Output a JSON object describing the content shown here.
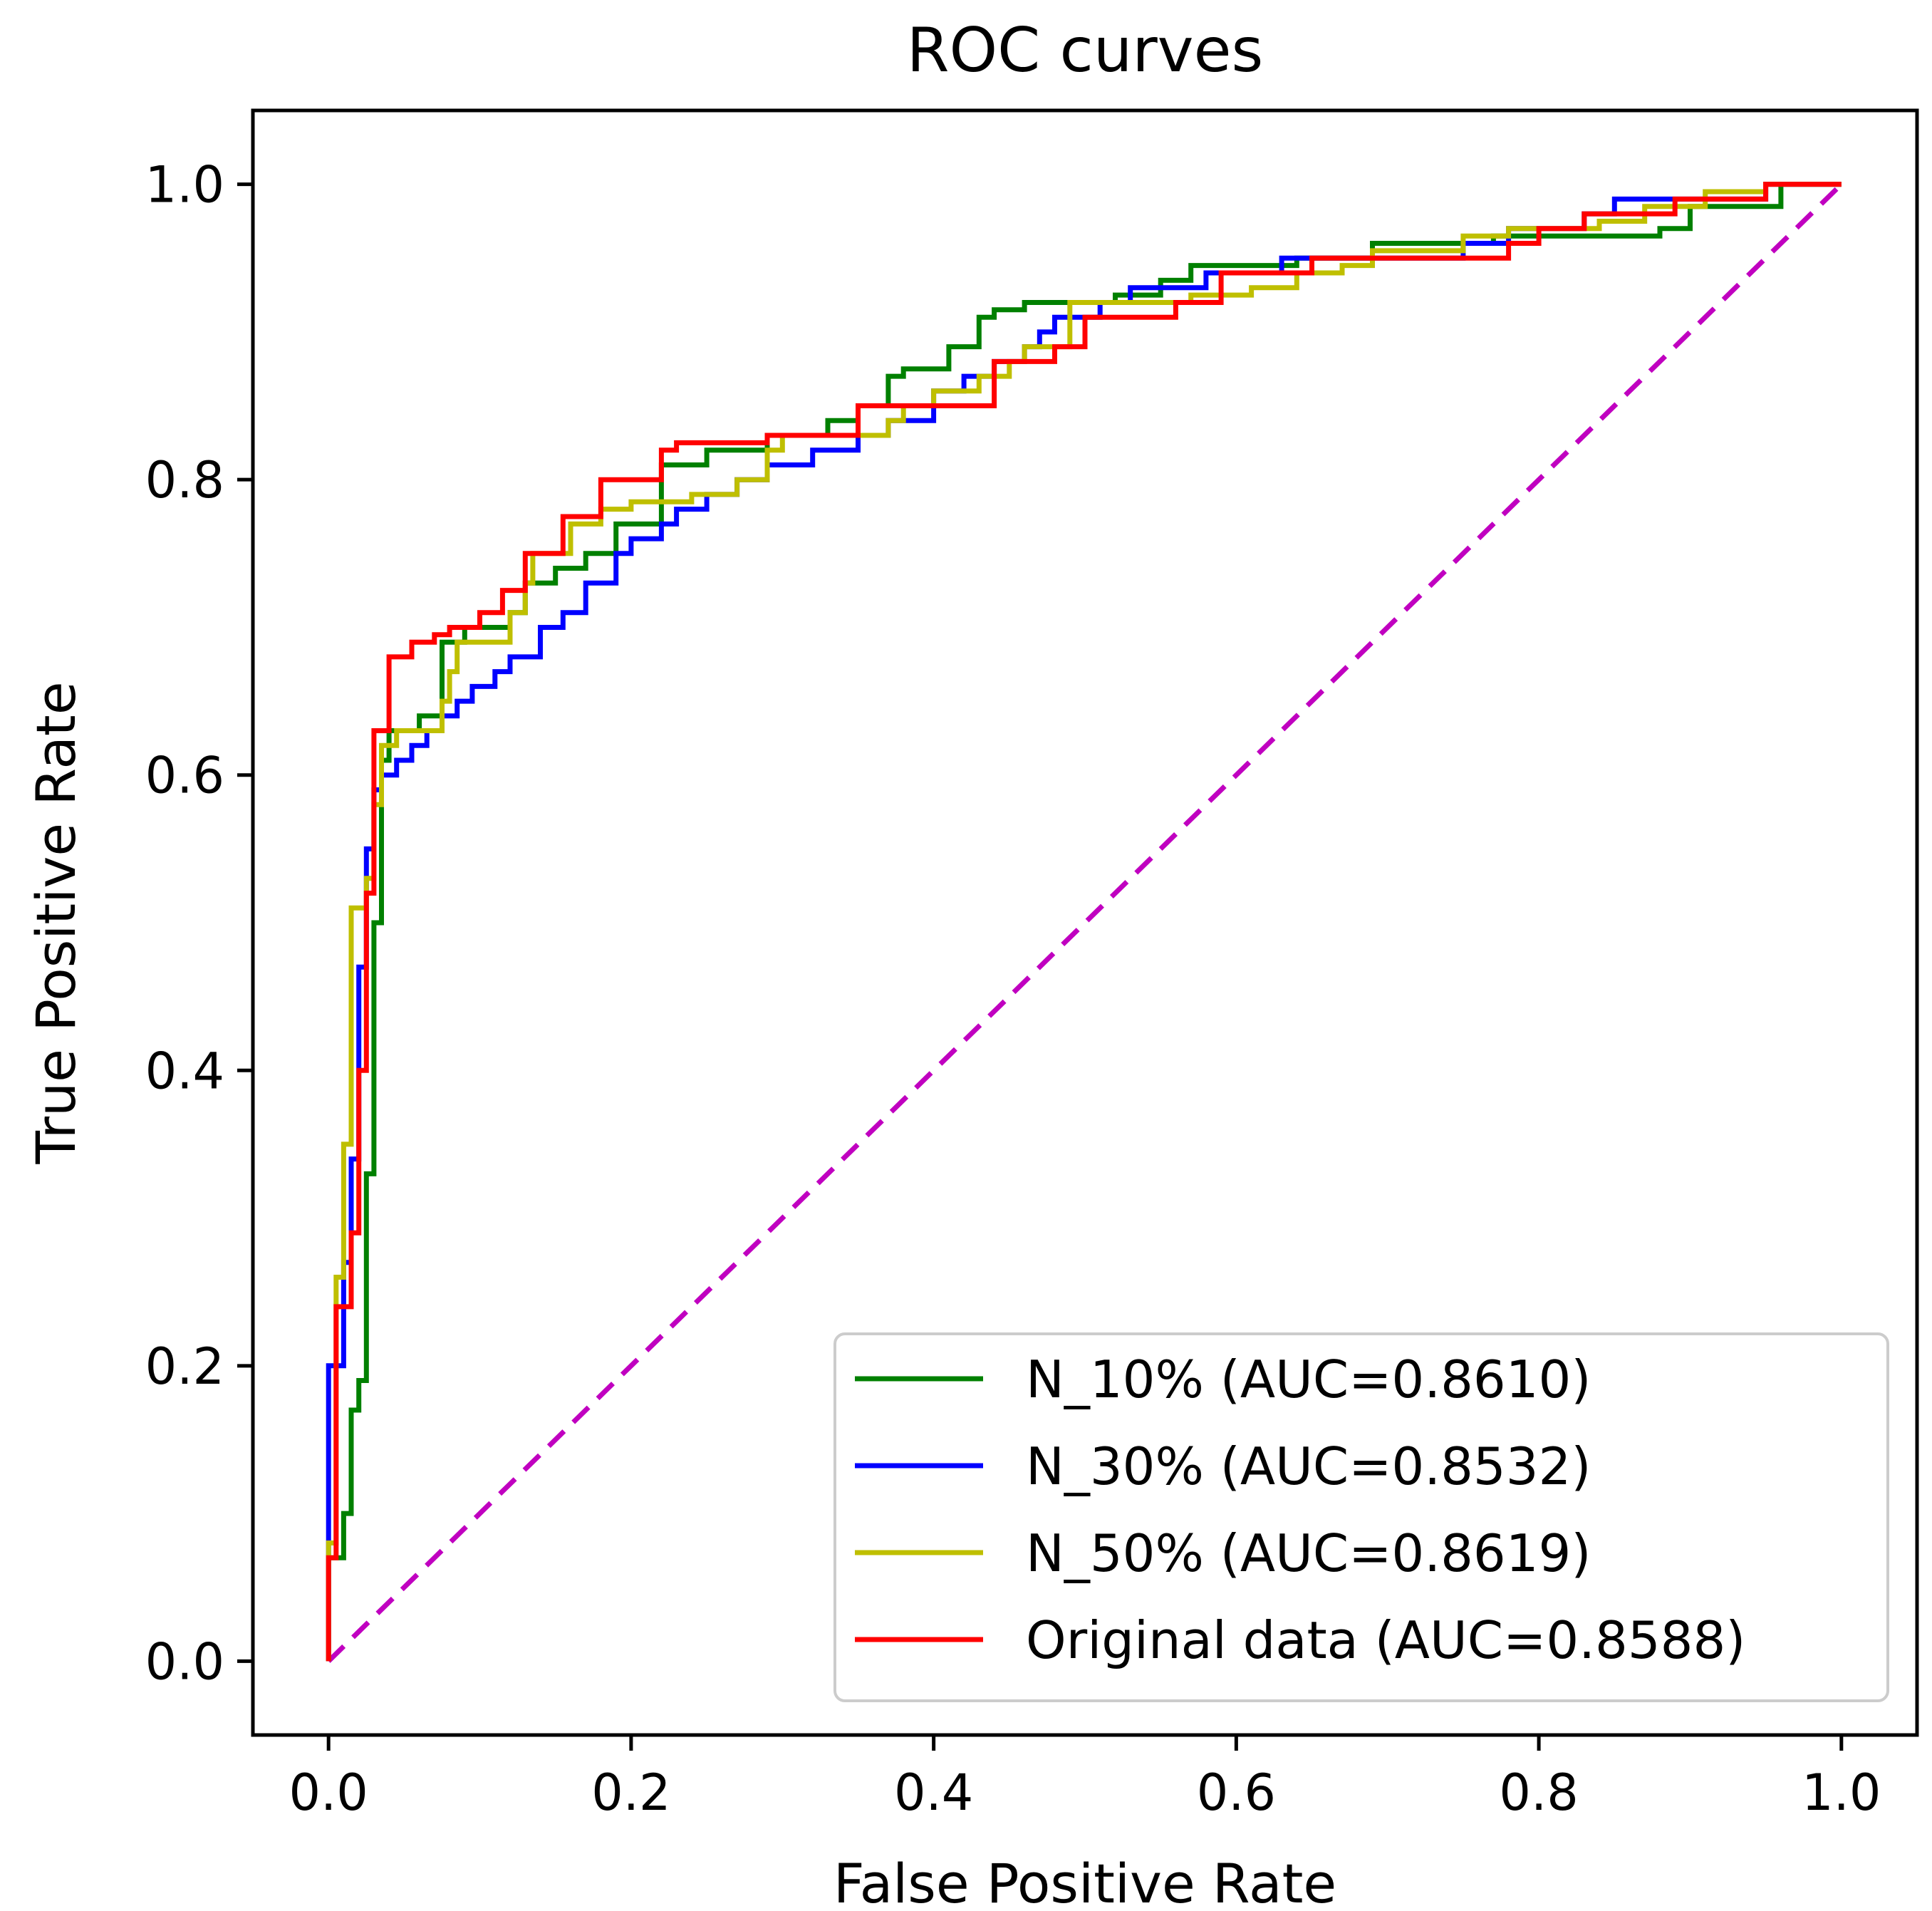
{
  "chart_data": {
    "type": "line",
    "title": "ROC curves",
    "xlabel": "False Positive Rate",
    "ylabel": "True Positive Rate",
    "xlim": [
      -0.05,
      1.05
    ],
    "ylim": [
      -0.05,
      1.05
    ],
    "xticks": [
      "0.0",
      "0.2",
      "0.4",
      "0.6",
      "0.8",
      "1.0"
    ],
    "yticks": [
      "0.0",
      "0.2",
      "0.4",
      "0.6",
      "0.8",
      "1.0"
    ],
    "grid": false,
    "legend_position": "lower-right",
    "series": [
      {
        "name": "N_10% (AUC=0.8610)",
        "color": "#008000",
        "x": [
          0.0,
          0.0,
          0.01,
          0.01,
          0.015,
          0.015,
          0.02,
          0.02,
          0.025,
          0.025,
          0.03,
          0.03,
          0.035,
          0.035,
          0.04,
          0.04,
          0.06,
          0.06,
          0.075,
          0.075,
          0.09,
          0.09,
          0.12,
          0.12,
          0.13,
          0.13,
          0.15,
          0.15,
          0.17,
          0.17,
          0.19,
          0.19,
          0.22,
          0.22,
          0.25,
          0.25,
          0.29,
          0.29,
          0.33,
          0.33,
          0.35,
          0.35,
          0.37,
          0.37,
          0.38,
          0.38,
          0.41,
          0.41,
          0.43,
          0.43,
          0.44,
          0.44,
          0.46,
          0.46,
          0.52,
          0.52,
          0.55,
          0.55,
          0.57,
          0.57,
          0.64,
          0.64,
          0.69,
          0.69,
          0.77,
          0.77,
          0.88,
          0.88,
          0.9,
          0.9,
          0.96,
          0.96,
          1.0
        ],
        "y": [
          0.0,
          0.07,
          0.07,
          0.1,
          0.1,
          0.17,
          0.17,
          0.19,
          0.19,
          0.33,
          0.33,
          0.5,
          0.5,
          0.61,
          0.61,
          0.63,
          0.63,
          0.64,
          0.64,
          0.69,
          0.69,
          0.7,
          0.7,
          0.71,
          0.71,
          0.73,
          0.73,
          0.74,
          0.74,
          0.75,
          0.75,
          0.77,
          0.77,
          0.81,
          0.81,
          0.82,
          0.82,
          0.83,
          0.83,
          0.84,
          0.84,
          0.85,
          0.85,
          0.87,
          0.87,
          0.875,
          0.875,
          0.89,
          0.89,
          0.91,
          0.91,
          0.915,
          0.915,
          0.92,
          0.92,
          0.925,
          0.925,
          0.935,
          0.935,
          0.945,
          0.945,
          0.95,
          0.95,
          0.96,
          0.96,
          0.965,
          0.965,
          0.97,
          0.97,
          0.985,
          0.985,
          1.0,
          1.0
        ]
      },
      {
        "name": "N_30% (AUC=0.8532)",
        "color": "#0000ff",
        "x": [
          0.0,
          0.0,
          0.01,
          0.01,
          0.015,
          0.015,
          0.02,
          0.02,
          0.025,
          0.025,
          0.03,
          0.03,
          0.035,
          0.035,
          0.045,
          0.045,
          0.055,
          0.055,
          0.065,
          0.065,
          0.075,
          0.075,
          0.085,
          0.085,
          0.095,
          0.095,
          0.11,
          0.11,
          0.12,
          0.12,
          0.14,
          0.14,
          0.155,
          0.155,
          0.17,
          0.17,
          0.19,
          0.19,
          0.2,
          0.2,
          0.22,
          0.22,
          0.23,
          0.23,
          0.25,
          0.25,
          0.27,
          0.27,
          0.29,
          0.29,
          0.32,
          0.32,
          0.35,
          0.35,
          0.37,
          0.37,
          0.4,
          0.4,
          0.42,
          0.42,
          0.44,
          0.44,
          0.46,
          0.46,
          0.47,
          0.47,
          0.48,
          0.48,
          0.51,
          0.51,
          0.53,
          0.53,
          0.58,
          0.58,
          0.63,
          0.63,
          0.75,
          0.75,
          0.78,
          0.78,
          0.83,
          0.83,
          0.85,
          0.85,
          0.95,
          0.95,
          1.0
        ],
        "y": [
          0.0,
          0.2,
          0.2,
          0.27,
          0.27,
          0.34,
          0.34,
          0.47,
          0.47,
          0.55,
          0.55,
          0.59,
          0.59,
          0.6,
          0.6,
          0.61,
          0.61,
          0.62,
          0.62,
          0.63,
          0.63,
          0.64,
          0.64,
          0.65,
          0.65,
          0.66,
          0.66,
          0.67,
          0.67,
          0.68,
          0.68,
          0.7,
          0.7,
          0.71,
          0.71,
          0.73,
          0.73,
          0.75,
          0.75,
          0.76,
          0.76,
          0.77,
          0.77,
          0.78,
          0.78,
          0.79,
          0.79,
          0.8,
          0.8,
          0.81,
          0.81,
          0.82,
          0.82,
          0.83,
          0.83,
          0.84,
          0.84,
          0.86,
          0.86,
          0.87,
          0.87,
          0.88,
          0.88,
          0.89,
          0.89,
          0.9,
          0.9,
          0.91,
          0.91,
          0.92,
          0.92,
          0.93,
          0.93,
          0.94,
          0.94,
          0.95,
          0.95,
          0.96,
          0.96,
          0.97,
          0.97,
          0.98,
          0.98,
          0.99,
          0.99,
          1.0,
          1.0
        ]
      },
      {
        "name": "N_50% (AUC=0.8619)",
        "color": "#bfbf00",
        "x": [
          0.0,
          0.0,
          0.005,
          0.005,
          0.01,
          0.01,
          0.015,
          0.015,
          0.025,
          0.025,
          0.03,
          0.03,
          0.035,
          0.035,
          0.045,
          0.045,
          0.075,
          0.075,
          0.08,
          0.08,
          0.085,
          0.085,
          0.12,
          0.12,
          0.13,
          0.13,
          0.135,
          0.135,
          0.16,
          0.16,
          0.18,
          0.18,
          0.2,
          0.2,
          0.24,
          0.24,
          0.27,
          0.27,
          0.29,
          0.29,
          0.3,
          0.3,
          0.37,
          0.37,
          0.38,
          0.38,
          0.4,
          0.4,
          0.43,
          0.43,
          0.45,
          0.45,
          0.46,
          0.46,
          0.49,
          0.49,
          0.57,
          0.57,
          0.61,
          0.61,
          0.64,
          0.64,
          0.67,
          0.67,
          0.69,
          0.69,
          0.75,
          0.75,
          0.78,
          0.78,
          0.84,
          0.84,
          0.87,
          0.87,
          0.91,
          0.91,
          0.95,
          0.95,
          1.0
        ],
        "y": [
          0.0,
          0.08,
          0.08,
          0.26,
          0.26,
          0.35,
          0.35,
          0.51,
          0.51,
          0.53,
          0.53,
          0.58,
          0.58,
          0.62,
          0.62,
          0.63,
          0.63,
          0.65,
          0.65,
          0.67,
          0.67,
          0.69,
          0.69,
          0.71,
          0.71,
          0.73,
          0.73,
          0.75,
          0.75,
          0.77,
          0.77,
          0.78,
          0.78,
          0.785,
          0.785,
          0.79,
          0.79,
          0.8,
          0.8,
          0.82,
          0.82,
          0.83,
          0.83,
          0.84,
          0.84,
          0.85,
          0.85,
          0.86,
          0.86,
          0.87,
          0.87,
          0.88,
          0.88,
          0.89,
          0.89,
          0.92,
          0.92,
          0.925,
          0.925,
          0.93,
          0.93,
          0.94,
          0.94,
          0.945,
          0.945,
          0.955,
          0.955,
          0.965,
          0.965,
          0.97,
          0.97,
          0.975,
          0.975,
          0.985,
          0.985,
          0.995,
          0.995,
          1.0,
          1.0
        ]
      },
      {
        "name": "Original data (AUC=0.8588)",
        "color": "#ff0000",
        "x": [
          0.0,
          0.0,
          0.005,
          0.005,
          0.015,
          0.015,
          0.02,
          0.02,
          0.025,
          0.025,
          0.03,
          0.03,
          0.04,
          0.04,
          0.055,
          0.055,
          0.07,
          0.07,
          0.08,
          0.08,
          0.1,
          0.1,
          0.115,
          0.115,
          0.13,
          0.13,
          0.155,
          0.155,
          0.18,
          0.18,
          0.22,
          0.22,
          0.23,
          0.23,
          0.29,
          0.29,
          0.35,
          0.35,
          0.44,
          0.44,
          0.48,
          0.48,
          0.5,
          0.5,
          0.56,
          0.56,
          0.59,
          0.59,
          0.65,
          0.65,
          0.78,
          0.78,
          0.8,
          0.8,
          0.83,
          0.83,
          0.89,
          0.89,
          0.95,
          0.95,
          1.0
        ],
        "y": [
          0.0,
          0.07,
          0.07,
          0.24,
          0.24,
          0.29,
          0.29,
          0.4,
          0.4,
          0.52,
          0.52,
          0.63,
          0.63,
          0.68,
          0.68,
          0.69,
          0.69,
          0.695,
          0.695,
          0.7,
          0.7,
          0.71,
          0.71,
          0.725,
          0.725,
          0.75,
          0.75,
          0.775,
          0.775,
          0.8,
          0.8,
          0.82,
          0.82,
          0.825,
          0.825,
          0.83,
          0.83,
          0.85,
          0.85,
          0.88,
          0.88,
          0.89,
          0.89,
          0.91,
          0.91,
          0.92,
          0.92,
          0.94,
          0.94,
          0.95,
          0.95,
          0.96,
          0.96,
          0.97,
          0.97,
          0.98,
          0.98,
          0.99,
          0.99,
          1.0,
          1.0
        ]
      }
    ],
    "reference_line": {
      "x": [
        0,
        1
      ],
      "y": [
        0,
        1
      ],
      "color": "#c000c0",
      "style": "dashed"
    }
  }
}
